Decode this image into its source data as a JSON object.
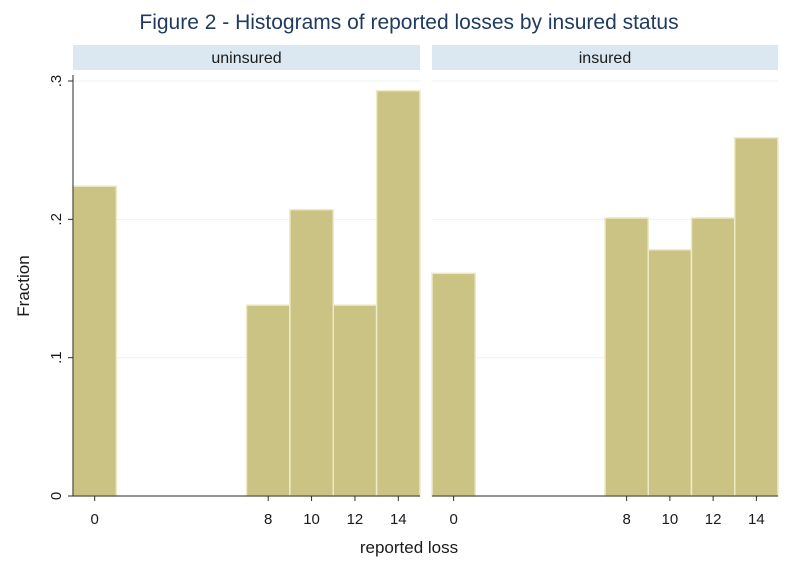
{
  "chart_data": {
    "type": "bar",
    "title": "Figure 2 - Histograms of reported losses by insured status",
    "xlabel": "reported loss",
    "ylabel": "Fraction",
    "ylim": [
      0,
      0.3
    ],
    "yticks": [
      {
        "value": 0,
        "label": "0"
      },
      {
        "value": 0.1,
        "label": ".1"
      },
      {
        "value": 0.2,
        "label": ".2"
      },
      {
        "value": 0.3,
        "label": ".3"
      }
    ],
    "xlim": [
      -1,
      15
    ],
    "xticks": [
      0,
      8,
      10,
      12,
      14
    ],
    "bin_width": 2,
    "grid": true,
    "panels": [
      {
        "name": "uninsured",
        "bins": [
          {
            "x": 0,
            "value": 0.224
          },
          {
            "x": 8,
            "value": 0.138
          },
          {
            "x": 10,
            "value": 0.207
          },
          {
            "x": 12,
            "value": 0.138
          },
          {
            "x": 14,
            "value": 0.293
          }
        ]
      },
      {
        "name": "insured",
        "bins": [
          {
            "x": 0,
            "value": 0.161
          },
          {
            "x": 8,
            "value": 0.201
          },
          {
            "x": 10,
            "value": 0.178
          },
          {
            "x": 12,
            "value": 0.201
          },
          {
            "x": 14,
            "value": 0.259
          }
        ]
      }
    ],
    "colors": {
      "bar": "#cbc384",
      "strip": "#dbe8f1",
      "title": "#1e3a5f"
    }
  }
}
